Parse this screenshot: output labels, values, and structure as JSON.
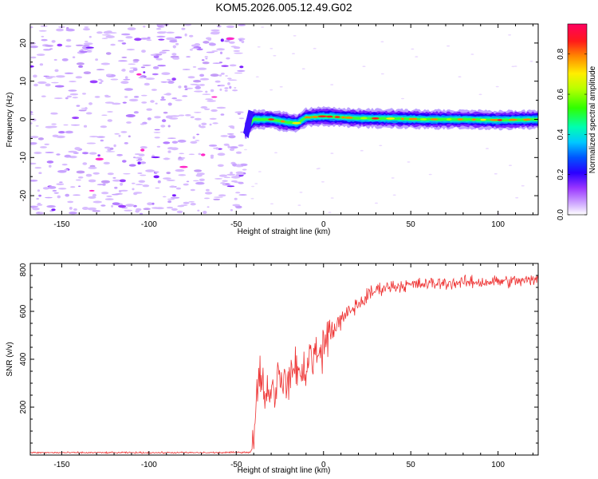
{
  "title": "KOM5.2026.005.12.49.G02",
  "chart_data": [
    {
      "type": "heatmap",
      "name": "spectrogram",
      "xlabel": "Height of straight line (km)",
      "ylabel": "Frequency (Hz)",
      "xlim": [
        -168,
        123
      ],
      "ylim": [
        -25,
        25
      ],
      "xticks": [
        -150,
        -100,
        -50,
        0,
        50,
        100
      ],
      "yticks": [
        -20,
        -10,
        0,
        10,
        20
      ],
      "colorbar": {
        "label": "Normalized spectral amplitude",
        "range": [
          0,
          0.95
        ],
        "ticks": [
          "0.0",
          "0.2",
          "0.4",
          "0.6",
          "0.8"
        ]
      },
      "signal_onset_km": -45,
      "signal_trace": {
        "x": [
          -45,
          -40,
          -30,
          -20,
          -15,
          -10,
          0,
          20,
          40,
          60,
          80,
          100,
          123
        ],
        "y": [
          -3,
          0,
          0,
          -0.8,
          -1.0,
          0.5,
          0.8,
          0.3,
          0.2,
          0.0,
          0.0,
          -0.2,
          0.0
        ]
      },
      "noise_region_km": [
        -168,
        -45
      ]
    },
    {
      "type": "line",
      "name": "snr",
      "xlabel": "Height of straight line (km)",
      "ylabel": "SNR (v/v)",
      "xlim": [
        -168,
        123
      ],
      "ylim": [
        0,
        800
      ],
      "xticks": [
        -150,
        -100,
        -50,
        0,
        50,
        100
      ],
      "yticks": [
        200,
        400,
        600,
        800
      ],
      "color": "#ee3333",
      "series": [
        {
          "name": "SNR",
          "x": [
            -168,
            -140,
            -100,
            -60,
            -42,
            -40,
            -38,
            -35,
            -33,
            -30,
            -28,
            -25,
            -22,
            -20,
            -18,
            -15,
            -13,
            -10,
            -5,
            0,
            5,
            10,
            15,
            20,
            25,
            30,
            35,
            40,
            50,
            60,
            70,
            80,
            90,
            100,
            110,
            123
          ],
          "y": [
            10,
            10,
            10,
            10,
            12,
            40,
            280,
            330,
            220,
            300,
            250,
            350,
            300,
            280,
            350,
            380,
            320,
            380,
            430,
            460,
            520,
            560,
            600,
            630,
            660,
            690,
            700,
            705,
            710,
            715,
            718,
            720,
            722,
            725,
            726,
            730
          ]
        }
      ]
    }
  ]
}
